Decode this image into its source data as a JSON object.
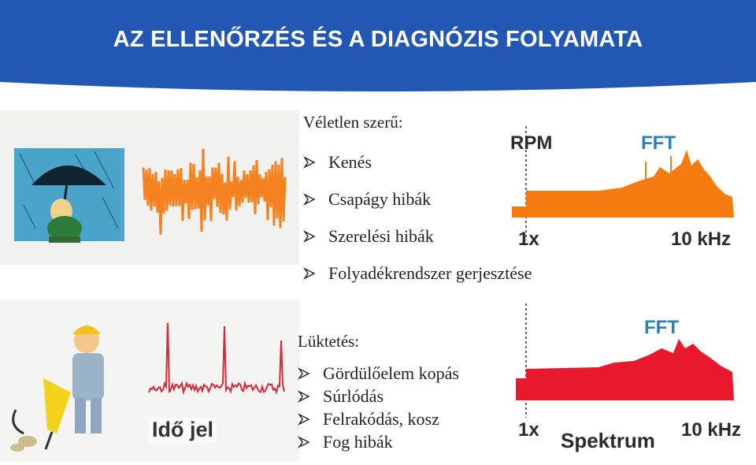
{
  "slide": {
    "title": "AZ ELLENŐRZÉS ÉS A DIAGNÓZIS FOLYAMATA"
  },
  "random_section": {
    "heading": "Véletlen szerű:",
    "items": [
      "Kenés",
      "Csapágy hibák",
      "Szerelési hibák",
      "Folyadékrendszer gerjesztése"
    ]
  },
  "pulsation_section": {
    "heading": "Lüktetés:",
    "items": [
      "Gördülőelem kopás",
      "Súrlódás",
      "Felrakódás, kosz",
      "Fog hibák"
    ]
  },
  "top_spectrum": {
    "rpm_label": "RPM",
    "fft_label": "FFT",
    "x_start": "1x",
    "x_end": "10 kHz",
    "fill_color": "#f57c10"
  },
  "bottom_spectrum": {
    "fft_label": "FFT",
    "x_start": "1x",
    "x_end": "10 kHz",
    "caption": "Spektrum",
    "fill_color": "#e8192c"
  },
  "time_signal": {
    "caption": "Idő jel",
    "color": "#d42a3a"
  },
  "random_signal": {
    "color": "#f58220"
  },
  "colors": {
    "header_blue": "#2257b3",
    "fft_blue": "#2a7fb4"
  }
}
